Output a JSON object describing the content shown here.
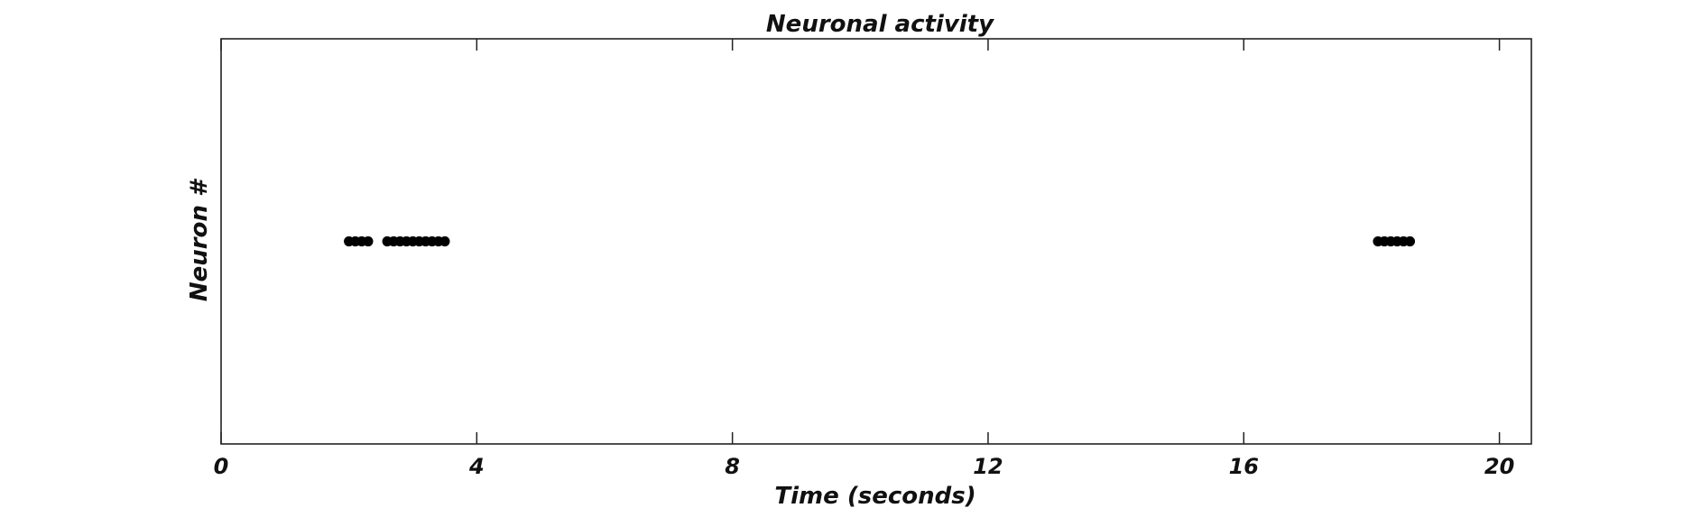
{
  "chart_data": {
    "type": "scatter",
    "title": "Neuronal activity",
    "xlabel": "Time (seconds)",
    "ylabel": "Neuron #",
    "xlim": [
      0,
      20.5
    ],
    "ylim": [
      0,
      2
    ],
    "xticks": [
      0,
      4,
      8,
      12,
      16,
      20
    ],
    "xtick_labels": [
      "0",
      "4",
      "8",
      "12",
      "16",
      "20"
    ],
    "yticks": [],
    "grid": false,
    "legend": "none",
    "marker_color": "#000000",
    "axis_color": "#222222",
    "series": [
      {
        "x": [
          2.0,
          2.1,
          2.2,
          2.3,
          2.6,
          2.7,
          2.8,
          2.9,
          3.0,
          3.1,
          3.2,
          3.3,
          3.4,
          3.5,
          18.1,
          18.2,
          18.3,
          18.4,
          18.5,
          18.6
        ],
        "y": [
          1,
          1,
          1,
          1,
          1,
          1,
          1,
          1,
          1,
          1,
          1,
          1,
          1,
          1,
          1,
          1,
          1,
          1,
          1,
          1
        ]
      }
    ]
  }
}
